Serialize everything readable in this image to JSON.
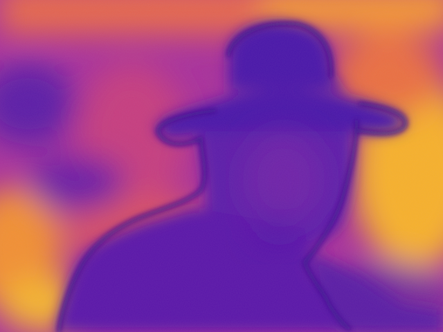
{
  "image": {
    "kind": "thermal-camera-frame",
    "subject": "person-silhouette-with-hat",
    "palette": {
      "coldest": "#3a0a9e",
      "cold": "#5a1aa6",
      "mid": "#b12d8a",
      "warm": "#e2563f",
      "hot": "#f58a2a",
      "hottest": "#ffd23a"
    }
  }
}
